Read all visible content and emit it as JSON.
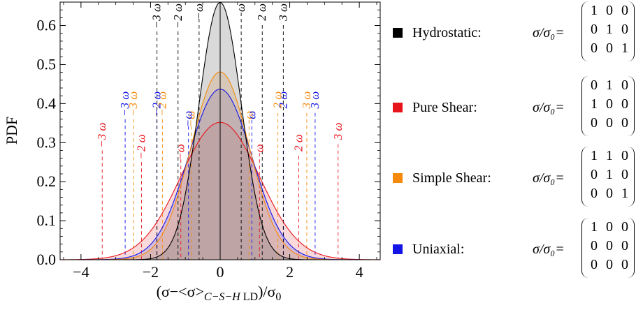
{
  "chart_data": {
    "type": "area",
    "ylabel": "PDF",
    "xlabel": "(σ−<σ>_{C−S−H LD})/σ₀",
    "xlim": [
      -4.6,
      4.6
    ],
    "ylim": [
      0,
      0.66
    ],
    "x_ticks": [
      "−4",
      "−2",
      "0",
      "2",
      "4"
    ],
    "x_tick_values": [
      -4,
      -2,
      0,
      2,
      4
    ],
    "y_ticks": [
      "0.0",
      "0.1",
      "0.2",
      "0.3",
      "0.4",
      "0.5",
      "0.6"
    ],
    "y_tick_values": [
      0,
      0.1,
      0.2,
      0.3,
      0.4,
      0.5,
      0.6
    ],
    "series": [
      {
        "name": "Pure Shear",
        "mean": 0,
        "std": 1.13,
        "peak": 0.352,
        "color": "#e8141b",
        "fill": "rgba(235,120,120,0.28)",
        "omega_labels": [
          "−3 ω",
          "−2 ω",
          "−ω",
          "ω",
          "2 ω",
          "3 ω"
        ],
        "omega_positions": [
          -3.39,
          -2.26,
          -1.13,
          1.13,
          2.26,
          3.39
        ],
        "omega_label_tops": [
          0.355,
          0.325,
          0.3,
          0.3,
          0.325,
          0.355
        ]
      },
      {
        "name": "Simple Shear",
        "mean": 0,
        "std": 0.83,
        "peak": 0.481,
        "color": "#f58a0c",
        "fill": "rgba(245,170,90,0.28)",
        "omega_labels": [
          "−3 ω",
          "−2 ω",
          "−ω",
          "ω",
          "2 ω",
          "3 ω"
        ],
        "omega_positions": [
          -2.49,
          -1.66,
          -0.83,
          0.83,
          1.66,
          2.49
        ],
        "omega_label_tops": [
          0.435,
          0.435,
          0.385,
          0.385,
          0.435,
          0.435
        ]
      },
      {
        "name": "Uniaxial",
        "mean": 0,
        "std": 0.91,
        "peak": 0.437,
        "color": "#1414e6",
        "fill": "rgba(110,110,230,0.28)",
        "omega_labels": [
          "−3 ω",
          "−2 ω",
          "−ω",
          "ω",
          "2 ω",
          "3 ω"
        ],
        "omega_positions": [
          -2.73,
          -1.82,
          -0.91,
          0.91,
          1.82,
          2.73
        ],
        "omega_label_tops": [
          0.435,
          0.435,
          0.385,
          0.385,
          0.435,
          0.435
        ]
      },
      {
        "name": "Hydrostatic",
        "mean": 0,
        "std": 0.605,
        "peak": 0.659,
        "color": "#000000",
        "fill": "rgba(120,120,120,0.28)",
        "omega_labels": [
          "−3 ω",
          "−2 ω",
          "−ω",
          "ω",
          "2 ω",
          "3 ω"
        ],
        "omega_positions": [
          -1.815,
          -1.21,
          -0.605,
          0.605,
          1.21,
          1.815
        ],
        "omega_label_tops": [
          0.66,
          0.66,
          0.66,
          0.66,
          0.66,
          0.66
        ]
      }
    ]
  },
  "legend": [
    {
      "label": "Hydrostatic:",
      "color": "#000000",
      "equation": "σ/σ₀=",
      "matrix": [
        [
          "1",
          "0",
          "0"
        ],
        [
          "0",
          "1",
          "0"
        ],
        [
          "0",
          "0",
          "1"
        ]
      ]
    },
    {
      "label": "Pure Shear:",
      "color": "#e8141b",
      "equation": "σ/σ₀=",
      "matrix": [
        [
          "0",
          "1",
          "0"
        ],
        [
          "1",
          "0",
          "0"
        ],
        [
          "0",
          "0",
          "0"
        ]
      ]
    },
    {
      "label": "Simple Shear:",
      "color": "#f58a0c",
      "equation": "σ/σ₀=",
      "matrix": [
        [
          "1",
          "1",
          "0"
        ],
        [
          "0",
          "1",
          "0"
        ],
        [
          "0",
          "0",
          "1"
        ]
      ]
    },
    {
      "label": "Uniaxial:",
      "color": "#1414e6",
      "equation": "σ/σ₀=",
      "matrix": [
        [
          "1",
          "0",
          "0"
        ],
        [
          "0",
          "0",
          "0"
        ],
        [
          "0",
          "0",
          "0"
        ]
      ]
    }
  ]
}
